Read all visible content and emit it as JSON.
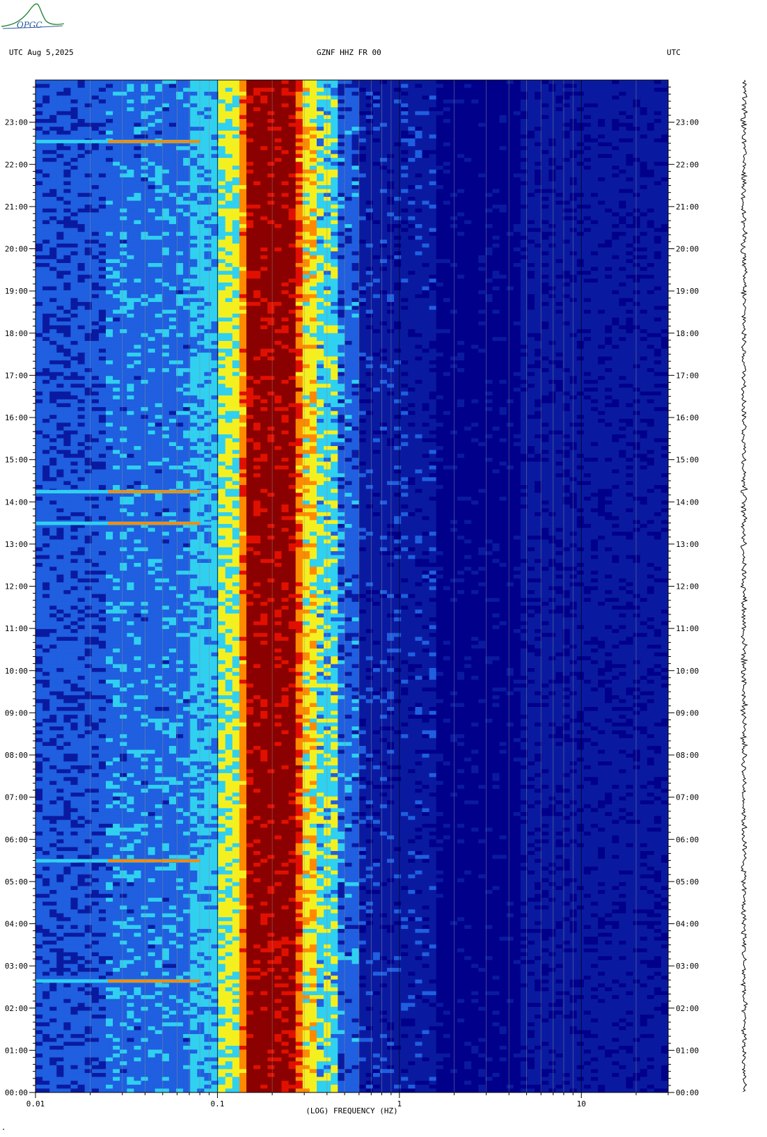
{
  "header": {
    "left": "UTC  Aug 5,2025",
    "center": "GZNF HHZ FR 00",
    "right": "UTC"
  },
  "logo": {
    "text": "OPGC",
    "icon": "opgc-logo-icon"
  },
  "footer": {
    "mark": "\""
  },
  "chart_data": {
    "type": "heatmap",
    "title": "GZNF HHZ FR 00",
    "xlabel": "(LOG) FREQUENCY (HZ)",
    "ylabel": "UTC",
    "x_scale": "log",
    "xlim": [
      0.01,
      30
    ],
    "x_tick_labels": [
      {
        "value": 0.01,
        "label": "0.01"
      },
      {
        "value": 0.1,
        "label": "0.1"
      },
      {
        "value": 1,
        "label": "1"
      },
      {
        "value": 10,
        "label": "10"
      }
    ],
    "y_tick_labels": [
      "00:00",
      "01:00",
      "02:00",
      "03:00",
      "04:00",
      "05:00",
      "06:00",
      "07:00",
      "08:00",
      "09:00",
      "10:00",
      "11:00",
      "12:00",
      "13:00",
      "14:00",
      "15:00",
      "16:00",
      "17:00",
      "18:00",
      "19:00",
      "20:00",
      "21:00",
      "22:00",
      "23:00"
    ],
    "ylim_hours": [
      0,
      24
    ],
    "colors": {
      "low": "#0a1aa0",
      "dark_low": "#00008b",
      "mid_blue": "#1f5fe0",
      "cyan": "#30d0f0",
      "yellow": "#f4f020",
      "orange": "#ff8a00",
      "red": "#e01000",
      "max": "#8b0000"
    },
    "microseism_band_hz": [
      0.14,
      0.28
    ],
    "events": [
      {
        "time_hours": 22.55,
        "fmax_hz": 0.1
      },
      {
        "time_hours": 14.25,
        "fmax_hz": 0.1
      },
      {
        "time_hours": 13.5,
        "fmax_hz": 0.1
      },
      {
        "time_hours": 5.5,
        "fmax_hz": 0.1
      },
      {
        "time_hours": 2.65,
        "fmax_hz": 0.1
      }
    ],
    "grid": true
  }
}
